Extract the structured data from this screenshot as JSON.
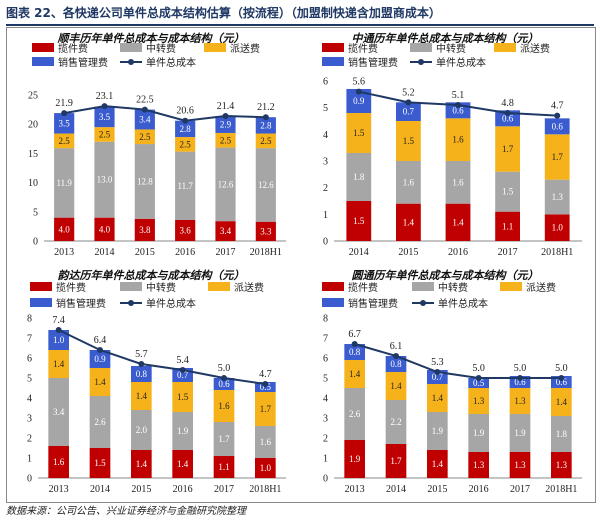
{
  "header": {
    "title": "图表 22、各快递公司单件总成本结构估算（按流程）（加盟制快递含加盟商成本）"
  },
  "source": "数据来源：公司公告、兴业证券经济与金融研究院整理",
  "colors": {
    "揽件费": "#c00000",
    "中转费": "#a6a6a6",
    "派送费": "#f6b21b",
    "销售管理费": "#3a5ccf",
    "单件总成本": "#1f3864"
  },
  "chart_data": [
    {
      "type": "bar",
      "title": "顺丰历年单件总成本与成本结构（元）",
      "categories": [
        "2013",
        "2014",
        "2015",
        "2016",
        "2017",
        "2018H1"
      ],
      "ylim": [
        0,
        25
      ],
      "yticks": [
        0,
        5,
        10,
        15,
        20,
        25
      ],
      "legend": [
        "揽件费",
        "中转费",
        "派送费",
        "销售管理费",
        "单件总成本"
      ],
      "series": [
        {
          "name": "揽件费",
          "values": [
            4.0,
            4.0,
            3.8,
            3.6,
            3.4,
            3.3
          ]
        },
        {
          "name": "中转费",
          "values": [
            11.9,
            13.0,
            12.8,
            11.7,
            12.6,
            12.6
          ]
        },
        {
          "name": "派送费",
          "values": [
            2.5,
            2.5,
            2.5,
            2.5,
            2.5,
            2.5
          ]
        },
        {
          "name": "销售管理费",
          "values": [
            3.5,
            3.5,
            3.4,
            2.8,
            2.9,
            2.8
          ]
        }
      ],
      "line": {
        "name": "单件总成本",
        "values": [
          21.9,
          23.1,
          22.5,
          20.6,
          21.4,
          21.2
        ]
      }
    },
    {
      "type": "bar",
      "title": "中通历年单件总成本与成本结构（元）",
      "categories": [
        "2014",
        "2015",
        "2016",
        "2017",
        "2018H1"
      ],
      "ylim": [
        0,
        6
      ],
      "yticks": [
        0,
        1,
        2,
        3,
        4,
        5,
        6
      ],
      "legend": [
        "揽件费",
        "中转费",
        "派送费",
        "销售管理费",
        "单件总成本"
      ],
      "series": [
        {
          "name": "揽件费",
          "values": [
            1.5,
            1.4,
            1.4,
            1.1,
            1.0
          ]
        },
        {
          "name": "中转费",
          "values": [
            1.8,
            1.6,
            1.6,
            1.5,
            1.3
          ]
        },
        {
          "name": "派送费",
          "values": [
            1.5,
            1.5,
            1.6,
            1.7,
            1.7
          ]
        },
        {
          "name": "销售管理费",
          "values": [
            0.9,
            0.7,
            0.6,
            0.6,
            0.6
          ]
        }
      ],
      "line": {
        "name": "单件总成本",
        "values": [
          5.6,
          5.2,
          5.1,
          4.8,
          4.7
        ]
      }
    },
    {
      "type": "bar",
      "title": "韵达历年单件总成本与成本结构（元）",
      "categories": [
        "2013",
        "2014",
        "2015",
        "2016",
        "2017",
        "2018H1"
      ],
      "ylim": [
        0,
        8
      ],
      "yticks": [
        0,
        1,
        2,
        3,
        4,
        5,
        6,
        7,
        8
      ],
      "legend": [
        "揽件费",
        "中转费",
        "派送费",
        "销售管理费",
        "单件总成本"
      ],
      "series": [
        {
          "name": "揽件费",
          "values": [
            1.6,
            1.5,
            1.4,
            1.4,
            1.1,
            1.0
          ]
        },
        {
          "name": "中转费",
          "values": [
            3.4,
            2.6,
            2.0,
            1.9,
            1.7,
            1.6
          ]
        },
        {
          "name": "派送费",
          "values": [
            1.4,
            1.4,
            1.4,
            1.5,
            1.6,
            1.7
          ]
        },
        {
          "name": "销售管理费",
          "values": [
            1.0,
            0.9,
            0.8,
            0.7,
            0.6,
            0.5
          ]
        }
      ],
      "line": {
        "name": "单件总成本",
        "values": [
          7.4,
          6.4,
          5.7,
          5.4,
          5.0,
          4.7
        ]
      }
    },
    {
      "type": "bar",
      "title": "圆通历年单件总成本与成本结构（元）",
      "categories": [
        "2013",
        "2014",
        "2015",
        "2016",
        "2017",
        "2018H1"
      ],
      "ylim": [
        0,
        8
      ],
      "yticks": [
        0,
        1,
        2,
        3,
        4,
        5,
        6,
        7,
        8
      ],
      "legend": [
        "揽件费",
        "中转费",
        "派送费",
        "销售管理费",
        "单件总成本"
      ],
      "series": [
        {
          "name": "揽件费",
          "values": [
            1.9,
            1.7,
            1.4,
            1.3,
            1.3,
            1.3
          ]
        },
        {
          "name": "中转费",
          "values": [
            2.6,
            2.2,
            1.9,
            1.9,
            1.9,
            1.8
          ]
        },
        {
          "name": "派送费",
          "values": [
            1.4,
            1.4,
            1.4,
            1.3,
            1.3,
            1.4
          ]
        },
        {
          "name": "销售管理费",
          "values": [
            0.8,
            0.8,
            0.7,
            0.5,
            0.6,
            0.6
          ]
        }
      ],
      "line": {
        "name": "单件总成本",
        "values": [
          6.7,
          6.1,
          5.3,
          5.0,
          5.0,
          5.0
        ]
      }
    }
  ]
}
